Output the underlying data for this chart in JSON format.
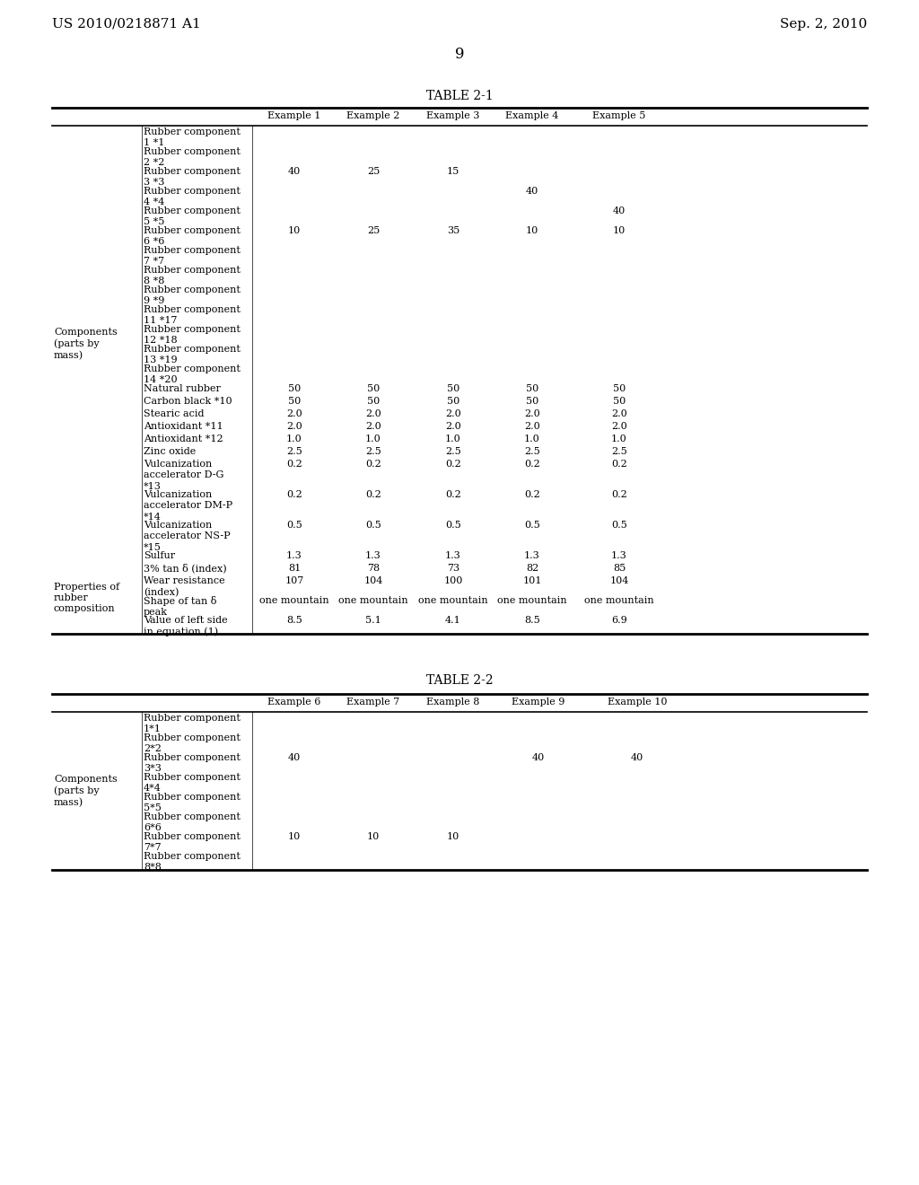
{
  "page_header_left": "US 2010/0218871 A1",
  "page_header_right": "Sep. 2, 2010",
  "page_number": "9",
  "table1_title": "TABLE 2-1",
  "table2_title": "TABLE 2-2",
  "background_color": "#ffffff",
  "col1_headers_t1": [
    "Example 1",
    "Example 2",
    "Example 3",
    "Example 4",
    "Example 5"
  ],
  "col1_headers_t2": [
    "Example 6",
    "Example 7",
    "Example 8",
    "Example 9",
    "Example 10"
  ],
  "t1_rows": [
    {
      "left": "Components\n(parts by\nmass)",
      "right": "Rubber component\n1 *1",
      "vals": [
        "",
        "",
        "",
        "",
        ""
      ],
      "rh": 22
    },
    {
      "left": "",
      "right": "Rubber component\n2 *2",
      "vals": [
        "",
        "",
        "",
        "",
        ""
      ],
      "rh": 22
    },
    {
      "left": "",
      "right": "Rubber component\n3 *3",
      "vals": [
        "40",
        "25",
        "15",
        "",
        ""
      ],
      "rh": 22
    },
    {
      "left": "",
      "right": "Rubber component\n4 *4",
      "vals": [
        "",
        "",
        "",
        "40",
        ""
      ],
      "rh": 22
    },
    {
      "left": "",
      "right": "Rubber component\n5 *5",
      "vals": [
        "",
        "",
        "",
        "",
        "40"
      ],
      "rh": 22
    },
    {
      "left": "",
      "right": "Rubber component\n6 *6",
      "vals": [
        "10",
        "25",
        "35",
        "10",
        "10"
      ],
      "rh": 22
    },
    {
      "left": "",
      "right": "Rubber component\n7 *7",
      "vals": [
        "",
        "",
        "",
        "",
        ""
      ],
      "rh": 22
    },
    {
      "left": "",
      "right": "Rubber component\n8 *8",
      "vals": [
        "",
        "",
        "",
        "",
        ""
      ],
      "rh": 22
    },
    {
      "left": "",
      "right": "Rubber component\n9 *9",
      "vals": [
        "",
        "",
        "",
        "",
        ""
      ],
      "rh": 22
    },
    {
      "left": "",
      "right": "Rubber component\n11 *17",
      "vals": [
        "",
        "",
        "",
        "",
        ""
      ],
      "rh": 22
    },
    {
      "left": "",
      "right": "Rubber component\n12 *18",
      "vals": [
        "",
        "",
        "",
        "",
        ""
      ],
      "rh": 22
    },
    {
      "left": "",
      "right": "Rubber component\n13 *19",
      "vals": [
        "",
        "",
        "",
        "",
        ""
      ],
      "rh": 22
    },
    {
      "left": "",
      "right": "Rubber component\n14 *20",
      "vals": [
        "",
        "",
        "",
        "",
        ""
      ],
      "rh": 22
    },
    {
      "left": "",
      "right": "Natural rubber",
      "vals": [
        "50",
        "50",
        "50",
        "50",
        "50"
      ],
      "rh": 14
    },
    {
      "left": "",
      "right": "Carbon black *10",
      "vals": [
        "50",
        "50",
        "50",
        "50",
        "50"
      ],
      "rh": 14
    },
    {
      "left": "",
      "right": "Stearic acid",
      "vals": [
        "2.0",
        "2.0",
        "2.0",
        "2.0",
        "2.0"
      ],
      "rh": 14
    },
    {
      "left": "",
      "right": "Antioxidant *11",
      "vals": [
        "2.0",
        "2.0",
        "2.0",
        "2.0",
        "2.0"
      ],
      "rh": 14
    },
    {
      "left": "",
      "right": "Antioxidant *12",
      "vals": [
        "1.0",
        "1.0",
        "1.0",
        "1.0",
        "1.0"
      ],
      "rh": 14
    },
    {
      "left": "",
      "right": "Zinc oxide",
      "vals": [
        "2.5",
        "2.5",
        "2.5",
        "2.5",
        "2.5"
      ],
      "rh": 14
    },
    {
      "left": "",
      "right": "Vulcanization\naccelerator D-G\n*13",
      "vals": [
        "0.2",
        "0.2",
        "0.2",
        "0.2",
        "0.2"
      ],
      "rh": 34
    },
    {
      "left": "",
      "right": "Vulcanization\naccelerator DM-P\n*14",
      "vals": [
        "0.2",
        "0.2",
        "0.2",
        "0.2",
        "0.2"
      ],
      "rh": 34
    },
    {
      "left": "",
      "right": "Vulcanization\naccelerator NS-P\n*15",
      "vals": [
        "0.5",
        "0.5",
        "0.5",
        "0.5",
        "0.5"
      ],
      "rh": 34
    },
    {
      "left": "",
      "right": "Sulfur",
      "vals": [
        "1.3",
        "1.3",
        "1.3",
        "1.3",
        "1.3"
      ],
      "rh": 14
    },
    {
      "left": "Properties of\nrubber\ncomposition",
      "right": "3% tan δ (index)",
      "vals": [
        "81",
        "78",
        "73",
        "82",
        "85"
      ],
      "rh": 14
    },
    {
      "left": "",
      "right": "Wear resistance\n(index)",
      "vals": [
        "107",
        "104",
        "100",
        "101",
        "104"
      ],
      "rh": 22
    },
    {
      "left": "",
      "right": "Shape of tan δ\npeak",
      "vals": [
        "one mountain",
        "one mountain",
        "one mountain",
        "one mountain",
        "one mountain"
      ],
      "rh": 22
    },
    {
      "left": "",
      "right": "Value of left side\nin equation (1)",
      "vals": [
        "8.5",
        "5.1",
        "4.1",
        "8.5",
        "6.9"
      ],
      "rh": 22
    }
  ],
  "t1_left_groups": [
    {
      "start": 0,
      "end": 22,
      "label": "Components\n(parts by\nmass)"
    },
    {
      "start": 23,
      "end": 26,
      "label": "Properties of\nrubber\ncomposition"
    }
  ],
  "t2_rows": [
    {
      "left": "Components\n(parts by\nmass)",
      "right": "Rubber component\n1*1",
      "vals": [
        "",
        "",
        "",
        "",
        ""
      ],
      "rh": 22
    },
    {
      "left": "",
      "right": "Rubber component\n2*2",
      "vals": [
        "",
        "",
        "",
        "",
        ""
      ],
      "rh": 22
    },
    {
      "left": "",
      "right": "Rubber component\n3*3",
      "vals": [
        "40",
        "",
        "",
        "40",
        "40"
      ],
      "rh": 22
    },
    {
      "left": "",
      "right": "Rubber component\n4*4",
      "vals": [
        "",
        "",
        "",
        "",
        ""
      ],
      "rh": 22
    },
    {
      "left": "",
      "right": "Rubber component\n5*5",
      "vals": [
        "",
        "",
        "",
        "",
        ""
      ],
      "rh": 22
    },
    {
      "left": "",
      "right": "Rubber component\n6*6",
      "vals": [
        "",
        "",
        "",
        "",
        ""
      ],
      "rh": 22
    },
    {
      "left": "",
      "right": "Rubber component\n7*7",
      "vals": [
        "10",
        "10",
        "10",
        "",
        ""
      ],
      "rh": 22
    },
    {
      "left": "",
      "right": "Rubber component\n8*8",
      "vals": [
        "",
        "",
        "",
        "",
        ""
      ],
      "rh": 22
    }
  ],
  "t2_left_groups": [
    {
      "start": 0,
      "end": 7,
      "label": "Components\n(parts by\nmass)"
    }
  ]
}
